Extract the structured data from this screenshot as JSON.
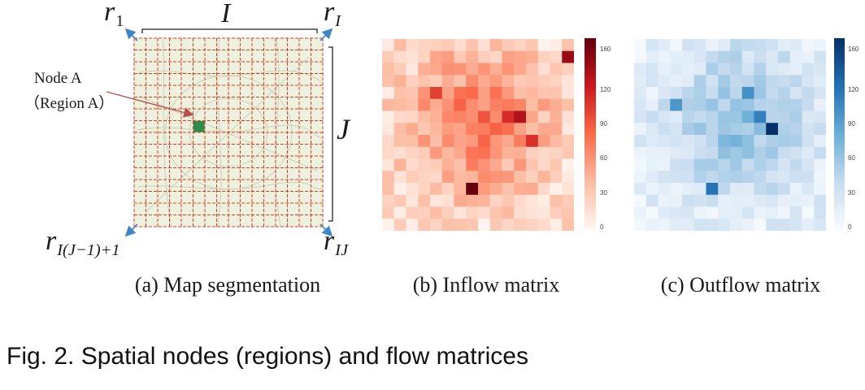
{
  "map_panel": {
    "label_r1_base": "r",
    "label_r1_sub": "1",
    "label_rI_base": "r",
    "label_rI_sub": "I",
    "label_rbl_base": "r",
    "label_rbl_sub": "I(J−1)+1",
    "label_rIJ_base": "r",
    "label_rIJ_sub": "IJ",
    "dim_I": "I",
    "dim_J": "J",
    "node_label_line1": "Node A",
    "node_label_line2": "（Region A）",
    "grid_cells": 16,
    "highlight_cell": [
      5,
      7
    ],
    "colors": {
      "map_bg": "#eef1dd",
      "grid_line": "#e03a26",
      "highlight": "#2e8b48",
      "corner_arrow": "#3f86c6",
      "pointer_arrow": "#b4514e"
    }
  },
  "inflow": {
    "colorbar_ticks": [
      "160",
      "120",
      "90",
      "60",
      "30",
      "0"
    ],
    "max": 160,
    "colormap": "Reds"
  },
  "outflow": {
    "colorbar_ticks": [
      "160",
      "120",
      "90",
      "60",
      "30",
      "0"
    ],
    "max": 160,
    "colormap": "Blues"
  },
  "captions": {
    "a": "(a) Map segmentation",
    "b": "(b) Inflow matrix",
    "c": "(c) Outflow matrix"
  },
  "figure_caption": "Fig. 2. Spatial nodes (regions) and flow matrices"
}
